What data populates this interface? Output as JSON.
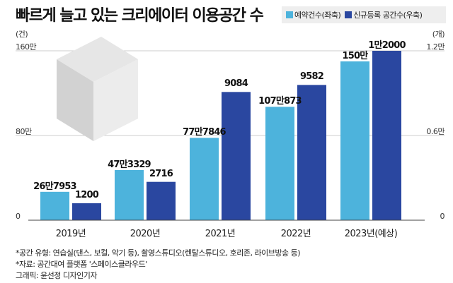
{
  "title": "빠르게 늘고 있는 크리에이터 이용공간 수",
  "colors": {
    "booking": "#4db3dc",
    "spaces": "#2a47a0"
  },
  "chart_data": {
    "type": "bar",
    "title": "빠르게 늘고 있는 크리에이터 이용공간 수",
    "categories": [
      "2019년",
      "2020년",
      "2021년",
      "2022년",
      "2023년(예상)"
    ],
    "series": [
      {
        "name": "예약건수(좌축)",
        "axis": "left",
        "values": [
          267953,
          473329,
          777846,
          1070873,
          1500000
        ],
        "labels": [
          "26만7953",
          "47만3329",
          "77만7846",
          "107만873",
          "150만"
        ]
      },
      {
        "name": "신규등록 공간수(우축)",
        "axis": "right",
        "values": [
          1200,
          2716,
          9084,
          9582,
          12000
        ],
        "labels": [
          "1200",
          "2716",
          "9084",
          "9582",
          "1만2000"
        ]
      }
    ],
    "left_axis": {
      "unit": "(건)",
      "ylim": [
        0,
        1600000
      ],
      "ticks": [
        "0",
        "80만",
        "160만"
      ]
    },
    "right_axis": {
      "unit": "(개)",
      "ylim": [
        0,
        12000
      ],
      "ticks": [
        "0",
        "0.6만",
        "1.2만"
      ]
    },
    "legend": "top-right"
  },
  "footnotes": [
    "*공간 유형: 연습실(댄스, 보컬, 악기 등), 촬영스튜디오(렌탈스튜디오, 호리존, 라이브방송 등)",
    "*자료: 공간대여 플랫폼 '스페이스클라우드'",
    "그래픽: 윤선정 디자인기자"
  ]
}
